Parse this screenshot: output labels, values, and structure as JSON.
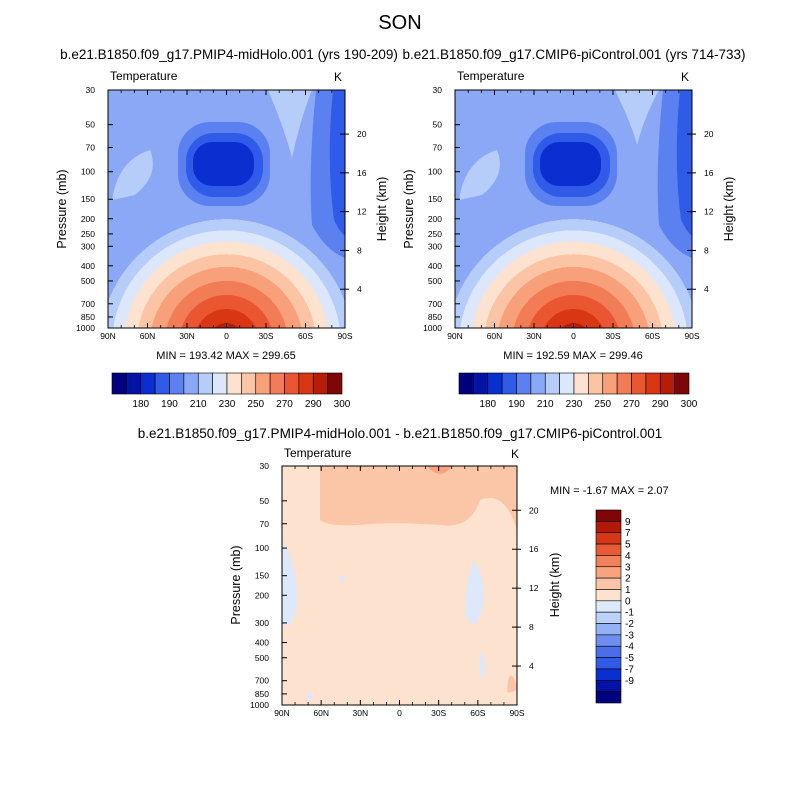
{
  "figure": {
    "season": "SON",
    "panel_left_title": "b.e21.B1850.f09_g17.PMIP4-midHolo.001 (yrs 190-209)",
    "panel_right_title": "b.e21.B1850.f09_g17.CMIP6-piControl.001 (yrs 714-733)",
    "panel_diff_title": "b.e21.B1850.f09_g17.PMIP4-midHolo.001 - b.e21.B1850.f09_g17.CMIP6-piControl.001"
  },
  "colors": {
    "main_scale": [
      "#00007f",
      "#0013a6",
      "#0a2fd0",
      "#2f5be8",
      "#5b80ef",
      "#8aa8f5",
      "#b7cdf9",
      "#dde7fb",
      "#fde3cf",
      "#fbc4a4",
      "#f8a079",
      "#f27c55",
      "#ea5532",
      "#d93614",
      "#b51d08",
      "#7e0606"
    ],
    "diff_scale": [
      "#00007f",
      "#0013a6",
      "#0a2fd0",
      "#2f5be8",
      "#4a6ee9",
      "#6e8ff0",
      "#94b1f5",
      "#bdd2fa",
      "#dde9fb",
      "#fde3cf",
      "#fbc6a8",
      "#f7a47e",
      "#f18158",
      "#e85a36",
      "#d63716",
      "#b01a06",
      "#7e0606"
    ]
  },
  "chart_data": [
    {
      "type": "heatmap",
      "subtype": "filled-contour",
      "panel": "PMIP4-midHolo",
      "variable_label": "Temperature",
      "units": "K",
      "ylabel": "Pressure (mb)",
      "y2label": "Height (km)",
      "x_ticks": [
        "90N",
        "60N",
        "30N",
        "0",
        "30S",
        "60S",
        "90S"
      ],
      "y_ticks": [
        "30",
        "50",
        "70",
        "100",
        "150",
        "200",
        "250",
        "300",
        "400",
        "500",
        "700",
        "850",
        "1000"
      ],
      "y2_ticks": [
        "20",
        "16",
        "12",
        "8",
        "4"
      ],
      "min": 193.42,
      "max": 299.65,
      "stats_label": "MIN = 193.42   MAX = 299.65",
      "colorbar_labels": [
        "180",
        "190",
        "210",
        "230",
        "250",
        "270",
        "290",
        "300"
      ]
    },
    {
      "type": "heatmap",
      "subtype": "filled-contour",
      "panel": "CMIP6-piControl",
      "variable_label": "Temperature",
      "units": "K",
      "ylabel": "Pressure (mb)",
      "y2label": "Height (km)",
      "x_ticks": [
        "90N",
        "60N",
        "30N",
        "0",
        "30S",
        "60S",
        "90S"
      ],
      "y_ticks": [
        "30",
        "50",
        "70",
        "100",
        "150",
        "200",
        "250",
        "300",
        "400",
        "500",
        "700",
        "850",
        "1000"
      ],
      "y2_ticks": [
        "20",
        "16",
        "12",
        "8",
        "4"
      ],
      "min": 192.59,
      "max": 299.46,
      "stats_label": "MIN = 192.59   MAX = 299.46",
      "colorbar_labels": [
        "180",
        "190",
        "210",
        "230",
        "250",
        "270",
        "290",
        "300"
      ]
    },
    {
      "type": "heatmap",
      "subtype": "filled-contour",
      "panel": "difference",
      "variable_label": "Temperature",
      "units": "K",
      "ylabel": "Pressure (mb)",
      "y2label": "Height (km)",
      "x_ticks": [
        "90N",
        "60N",
        "30N",
        "0",
        "30S",
        "60S",
        "90S"
      ],
      "y_ticks": [
        "30",
        "50",
        "70",
        "100",
        "150",
        "200",
        "300",
        "400",
        "500",
        "700",
        "850",
        "1000"
      ],
      "y2_ticks": [
        "20",
        "16",
        "12",
        "8",
        "4"
      ],
      "min": -1.67,
      "max": 2.07,
      "stats_label": "MIN =  -1.67   MAX =   2.07",
      "colorbar_labels": [
        "9",
        "7",
        "5",
        "4",
        "3",
        "2",
        "1",
        "0",
        "-1",
        "-2",
        "-3",
        "-4",
        "-5",
        "-7",
        "-9"
      ]
    }
  ]
}
